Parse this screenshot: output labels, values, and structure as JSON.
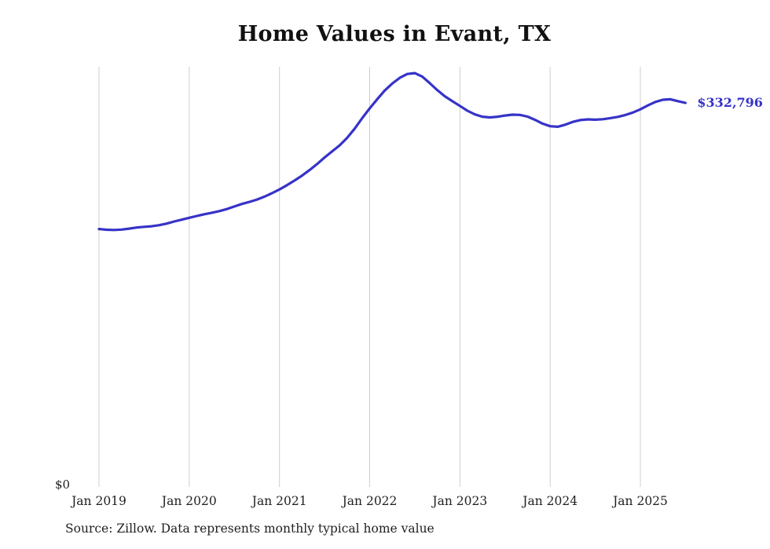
{
  "title": "Home Values in Evant, TX",
  "source_note": "Source: Zillow. Data represents monthly typical home value",
  "y_axis": {
    "zero_label": "$0"
  },
  "end_label": "$332,796",
  "line_color": "#3633c8",
  "grid_color": "#cfcfcf",
  "chart_data": {
    "type": "line",
    "title": "Home Values in Evant, TX",
    "xlabel": "",
    "ylabel": "",
    "legend": "none",
    "grid": "vertical-only",
    "ylim": [
      0,
      380000
    ],
    "final_value": 332796,
    "x_ticks": [
      "Jan 2019",
      "Jan 2020",
      "Jan 2021",
      "Jan 2022",
      "Jan 2023",
      "Jan 2024",
      "Jan 2025"
    ],
    "x": [
      "2019-01",
      "2019-02",
      "2019-03",
      "2019-04",
      "2019-05",
      "2019-06",
      "2019-07",
      "2019-08",
      "2019-09",
      "2019-10",
      "2019-11",
      "2019-12",
      "2020-01",
      "2020-02",
      "2020-03",
      "2020-04",
      "2020-05",
      "2020-06",
      "2020-07",
      "2020-08",
      "2020-09",
      "2020-10",
      "2020-11",
      "2020-12",
      "2021-01",
      "2021-02",
      "2021-03",
      "2021-04",
      "2021-05",
      "2021-06",
      "2021-07",
      "2021-08",
      "2021-09",
      "2021-10",
      "2021-11",
      "2021-12",
      "2022-01",
      "2022-02",
      "2022-03",
      "2022-04",
      "2022-05",
      "2022-06",
      "2022-07",
      "2022-08",
      "2022-09",
      "2022-10",
      "2022-11",
      "2022-12",
      "2023-01",
      "2023-02",
      "2023-03",
      "2023-04",
      "2023-05",
      "2023-06",
      "2023-07",
      "2023-08",
      "2023-09",
      "2023-10",
      "2023-11",
      "2023-12",
      "2024-01",
      "2024-02",
      "2024-03",
      "2024-04",
      "2024-05",
      "2024-06",
      "2024-07",
      "2024-08",
      "2024-09",
      "2024-10",
      "2024-11",
      "2024-12",
      "2025-01",
      "2025-02",
      "2025-03",
      "2025-04",
      "2025-05",
      "2025-06",
      "2025-07"
    ],
    "values": [
      223500,
      222900,
      222700,
      223000,
      223800,
      224800,
      225400,
      225900,
      226800,
      228200,
      230000,
      231600,
      233200,
      234800,
      236300,
      237600,
      239000,
      240800,
      243000,
      245200,
      247000,
      249000,
      251500,
      254500,
      257800,
      261500,
      265500,
      269800,
      274500,
      279800,
      285500,
      290800,
      296000,
      302500,
      310500,
      319500,
      328000,
      336000,
      343500,
      349500,
      354500,
      357800,
      358600,
      355500,
      349800,
      343800,
      338500,
      334200,
      330200,
      326000,
      322800,
      320800,
      320200,
      320800,
      321800,
      322600,
      322400,
      320900,
      318100,
      314800,
      312600,
      312100,
      313900,
      316300,
      317900,
      318500,
      318200,
      318600,
      319600,
      320700,
      322300,
      324400,
      327200,
      330600,
      333600,
      335500,
      335900,
      334300,
      332796
    ]
  }
}
